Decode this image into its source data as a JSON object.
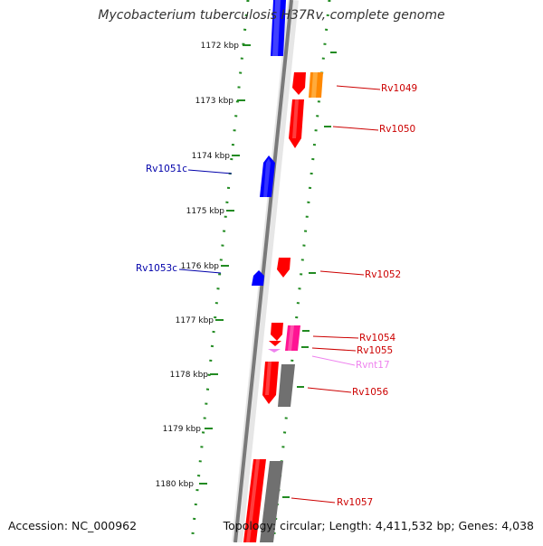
{
  "title": "Mycobacterium tuberculosis H37Rv, complete genome",
  "accession_text": "Accession: NC_000962",
  "topology_text": "Topology: circular; Length: 4,411,532 bp; Genes: 4,038",
  "colors": {
    "forward_gene": "#ff0000",
    "reverse_gene": "#0000ff",
    "orange_gene": "#ff8800",
    "magenta_gene": "#ff1493",
    "grey_gene": "#707070",
    "rna_gene": "#ee82ee",
    "tick_green": "#228b22",
    "label_red": "#cc0000",
    "label_blue": "#0000aa",
    "label_pink": "#ee82ee"
  },
  "scale_labels": [
    "1172 kbp",
    "1173 kbp",
    "1174 kbp",
    "1175 kbp",
    "1176 kbp",
    "1177 kbp",
    "1178 kbp",
    "1179 kbp",
    "1180 kbp"
  ],
  "gene_labels": [
    {
      "text": "Rv1049",
      "strand": "forward"
    },
    {
      "text": "Rv1050",
      "strand": "forward"
    },
    {
      "text": "Rv1051c",
      "strand": "reverse"
    },
    {
      "text": "Rv1052",
      "strand": "forward"
    },
    {
      "text": "Rv1053c",
      "strand": "reverse"
    },
    {
      "text": "Rv1054",
      "strand": "forward"
    },
    {
      "text": "Rv1055",
      "strand": "forward"
    },
    {
      "text": "Rvnt17",
      "strand": "rna"
    },
    {
      "text": "Rv1056",
      "strand": "forward"
    },
    {
      "text": "Rv1057",
      "strand": "forward"
    }
  ]
}
